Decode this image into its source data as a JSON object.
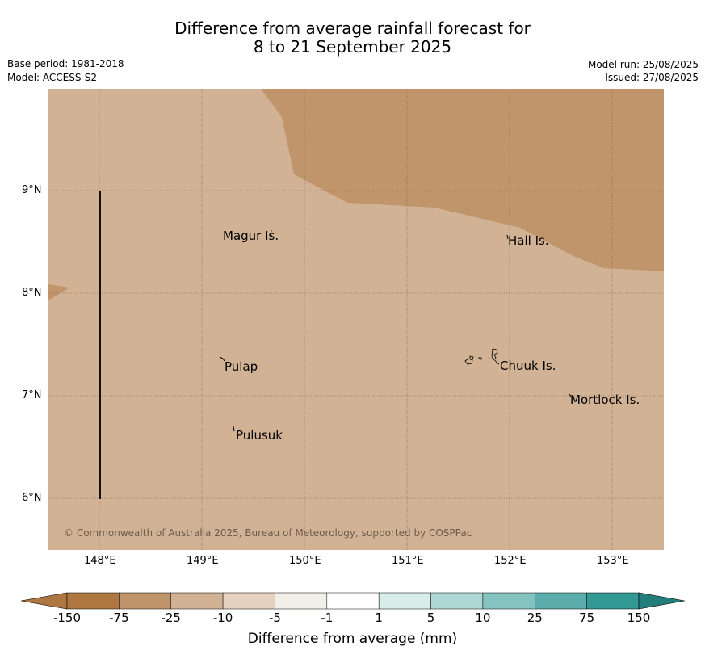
{
  "header": {
    "title_line1": "Difference from average rainfall forecast for",
    "title_line2": "8 to 21 September 2025",
    "base_period": "Base period: 1981-2018",
    "model": "Model: ACCESS-S2",
    "model_run": "Model run: 25/08/2025",
    "issued": "Issued: 27/08/2025"
  },
  "map": {
    "lon_ticks": [
      "148°E",
      "149°E",
      "150°E",
      "151°E",
      "152°E",
      "153°E"
    ],
    "lat_ticks": [
      "9°N",
      "8°N",
      "7°N",
      "6°N"
    ],
    "places": [
      {
        "name": "Magur Is."
      },
      {
        "name": "Hall Is."
      },
      {
        "name": "Pulap"
      },
      {
        "name": "Chuuk Is."
      },
      {
        "name": "Mortlock Is."
      },
      {
        "name": "Pulusuk"
      }
    ],
    "copyright": "© Commonwealth of Australia 2025, Bureau of Meteorology, supported by COSPPac",
    "colors": {
      "background_class": "#d2b294",
      "drier_class": "#c0956b",
      "gridline": "#7f6a55"
    }
  },
  "colorbar": {
    "title": "Difference from average (mm)",
    "tick_labels": [
      "-150",
      "-75",
      "-25",
      "-10",
      "-5",
      "-1",
      "1",
      "5",
      "10",
      "25",
      "75",
      "150"
    ],
    "colors": [
      "#ae7641",
      "#c0946b",
      "#d2b294",
      "#e4d1bf",
      "#f2efe9",
      "#ffffff",
      "#d8ecea",
      "#add7d5",
      "#85c3c1",
      "#5aadab",
      "#319894",
      "#237e7b"
    ]
  }
}
